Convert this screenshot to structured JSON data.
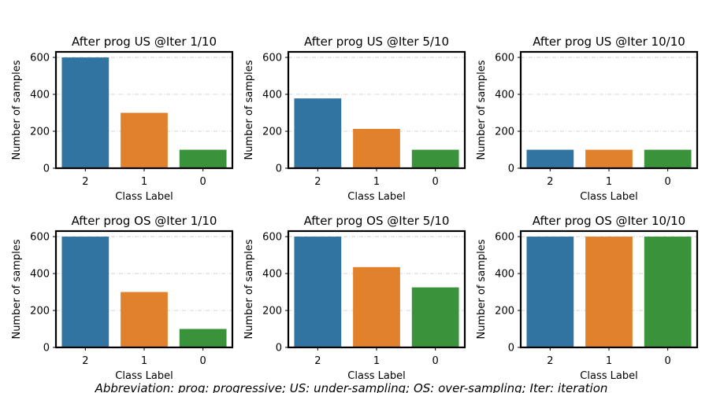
{
  "chart_data": [
    {
      "type": "bar",
      "title": "After prog US @Iter 1/10",
      "xlabel": "Class Label",
      "ylabel": "Number of samples",
      "categories": [
        "2",
        "1",
        "0"
      ],
      "values": [
        600,
        300,
        100
      ],
      "ylim": [
        0,
        630
      ],
      "yticks": [
        "0",
        "200",
        "400",
        "600"
      ],
      "colors": [
        "#3274a1",
        "#e1812c",
        "#3a923a"
      ],
      "grid": true
    },
    {
      "type": "bar",
      "title": "After prog US @Iter 5/10",
      "xlabel": "Class Label",
      "ylabel": "Number of samples",
      "categories": [
        "2",
        "1",
        "0"
      ],
      "values": [
        378,
        213,
        100
      ],
      "ylim": [
        0,
        630
      ],
      "yticks": [
        "0",
        "200",
        "400",
        "600"
      ],
      "colors": [
        "#3274a1",
        "#e1812c",
        "#3a923a"
      ],
      "grid": true
    },
    {
      "type": "bar",
      "title": "After prog US @Iter 10/10",
      "xlabel": "Class Label",
      "ylabel": "Number of samples",
      "categories": [
        "2",
        "1",
        "0"
      ],
      "values": [
        100,
        100,
        100
      ],
      "ylim": [
        0,
        630
      ],
      "yticks": [
        "0",
        "200",
        "400",
        "600"
      ],
      "colors": [
        "#3274a1",
        "#e1812c",
        "#3a923a"
      ],
      "grid": true
    },
    {
      "type": "bar",
      "title": "After prog OS @Iter 1/10",
      "xlabel": "Class Label",
      "ylabel": "Number of samples",
      "categories": [
        "2",
        "1",
        "0"
      ],
      "values": [
        600,
        300,
        100
      ],
      "ylim": [
        0,
        630
      ],
      "yticks": [
        "0",
        "200",
        "400",
        "600"
      ],
      "colors": [
        "#3274a1",
        "#e1812c",
        "#3a923a"
      ],
      "grid": true
    },
    {
      "type": "bar",
      "title": "After prog OS @Iter 5/10",
      "xlabel": "Class Label",
      "ylabel": "Number of samples",
      "categories": [
        "2",
        "1",
        "0"
      ],
      "values": [
        600,
        435,
        325
      ],
      "ylim": [
        0,
        630
      ],
      "yticks": [
        "0",
        "200",
        "400",
        "600"
      ],
      "colors": [
        "#3274a1",
        "#e1812c",
        "#3a923a"
      ],
      "grid": true
    },
    {
      "type": "bar",
      "title": "After prog OS @Iter 10/10",
      "xlabel": "Class Label",
      "ylabel": "Number of samples",
      "categories": [
        "2",
        "1",
        "0"
      ],
      "values": [
        600,
        600,
        600
      ],
      "ylim": [
        0,
        630
      ],
      "yticks": [
        "0",
        "200",
        "400",
        "600"
      ],
      "colors": [
        "#3274a1",
        "#e1812c",
        "#3a923a"
      ],
      "grid": true
    }
  ],
  "caption": "Abbreviation: prog: progressive; US: under-sampling; OS: over-sampling; Iter: iteration"
}
